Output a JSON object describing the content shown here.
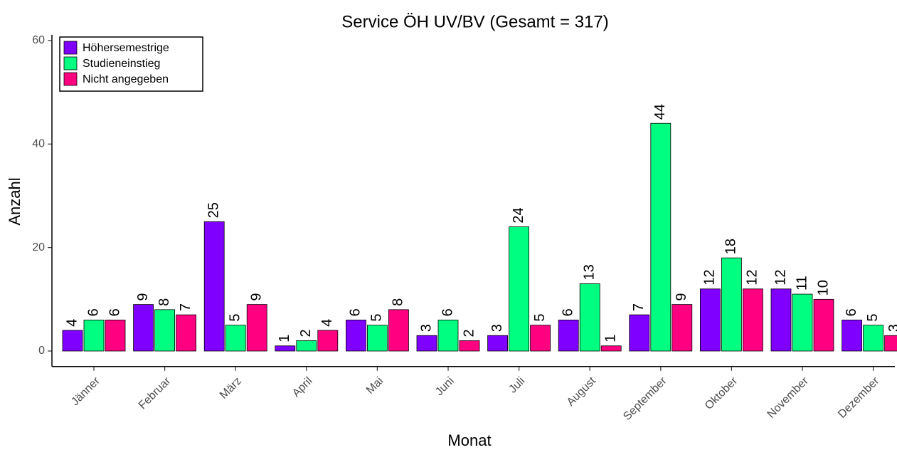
{
  "chart_data": {
    "type": "bar",
    "title": "Service ÖH UV/BV (Gesamt = 317)",
    "x_label": "Monat",
    "y_label": "Anzahl",
    "categories": [
      "Jänner",
      "Februar",
      "März",
      "April",
      "Mai",
      "Juni",
      "Juli",
      "August",
      "September",
      "Oktober",
      "November",
      "Dezember"
    ],
    "series": [
      {
        "name": "Höhersemestrige",
        "color": "#7f00ff",
        "values": [
          4,
          9,
          25,
          1,
          6,
          3,
          3,
          6,
          7,
          12,
          12,
          6
        ]
      },
      {
        "name": "Studieneinstieg",
        "color": "#00ff80",
        "values": [
          6,
          8,
          5,
          2,
          5,
          6,
          24,
          13,
          44,
          18,
          11,
          5
        ]
      },
      {
        "name": "Nicht angegeben",
        "color": "#ff0080",
        "values": [
          6,
          7,
          9,
          4,
          8,
          2,
          5,
          1,
          9,
          12,
          10,
          3
        ]
      }
    ],
    "ylim": [
      -3,
      62
    ],
    "yticks": [
      0,
      20,
      40,
      60
    ],
    "grid": false,
    "legend": "top-left"
  }
}
